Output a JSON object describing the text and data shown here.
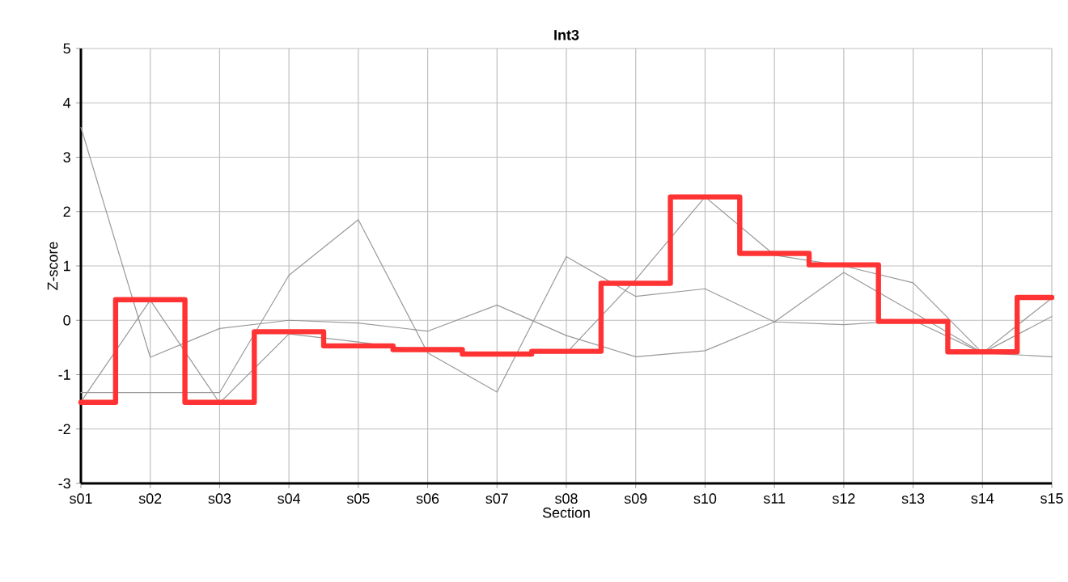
{
  "chart_data": {
    "type": "line",
    "title": "Int3",
    "xlabel": "Section",
    "ylabel": "Z-score",
    "categories": [
      "s01",
      "s02",
      "s03",
      "s04",
      "s05",
      "s06",
      "s07",
      "s08",
      "s09",
      "s10",
      "s11",
      "s12",
      "s13",
      "s14",
      "s15"
    ],
    "ylim": [
      -3,
      5
    ],
    "yticks": [
      -3,
      -2,
      -1,
      0,
      1,
      2,
      3,
      4,
      5
    ],
    "grid": true,
    "series": [
      {
        "color": "#999999",
        "values": [
          3.55,
          -0.68,
          -0.15,
          0.0,
          -0.05,
          -0.2,
          0.28,
          -0.28,
          -0.67,
          -0.56,
          -0.03,
          -0.08,
          0.0,
          -0.6,
          -0.67
        ]
      },
      {
        "color": "#999999",
        "values": [
          -1.5,
          0.37,
          -1.52,
          -0.25,
          -0.4,
          -0.57,
          -0.6,
          -0.6,
          0.75,
          2.27,
          1.2,
          1.0,
          0.69,
          -0.6,
          0.07
        ]
      },
      {
        "color": "#999999",
        "values": [
          -1.33,
          -1.33,
          -1.33,
          0.83,
          1.85,
          -0.6,
          -1.32,
          1.17,
          0.44,
          0.58,
          -0.03,
          0.88,
          0.15,
          -0.6,
          0.41
        ]
      },
      {
        "type": "step",
        "color": "#ff3333",
        "values": [
          -1.51,
          0.38,
          -1.51,
          -0.21,
          -0.47,
          -0.54,
          -0.62,
          -0.57,
          0.68,
          2.27,
          1.23,
          1.02,
          -0.02,
          -0.58,
          0.42
        ]
      }
    ]
  }
}
